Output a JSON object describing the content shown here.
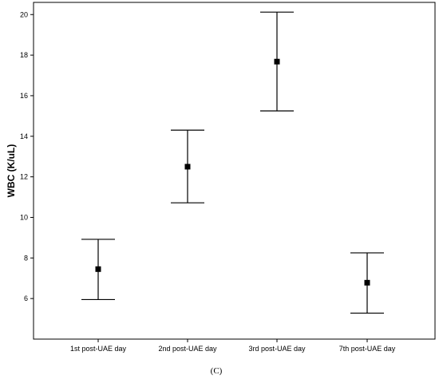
{
  "chart_data": {
    "type": "errorbar",
    "categories": [
      "1st post-UAE day",
      "2nd post-UAE day",
      "3rd post-UAE day",
      "7th post-UAE day"
    ],
    "points": [
      {
        "category": "1st post-UAE day",
        "mean": 7.45,
        "lower": 5.95,
        "upper": 8.92
      },
      {
        "category": "2nd post-UAE day",
        "mean": 12.5,
        "lower": 10.72,
        "upper": 14.3
      },
      {
        "category": "3rd post-UAE day",
        "mean": 17.68,
        "lower": 15.25,
        "upper": 20.12
      },
      {
        "category": "7th post-UAE day",
        "mean": 6.78,
        "lower": 5.28,
        "upper": 8.25
      }
    ],
    "ylabel": "WBC (K/uL)",
    "ylim": [
      4,
      20.6
    ],
    "yticks": [
      6,
      8,
      10,
      12,
      14,
      16,
      18,
      20
    ],
    "grid": false,
    "legend": "none"
  },
  "caption": "(C)"
}
